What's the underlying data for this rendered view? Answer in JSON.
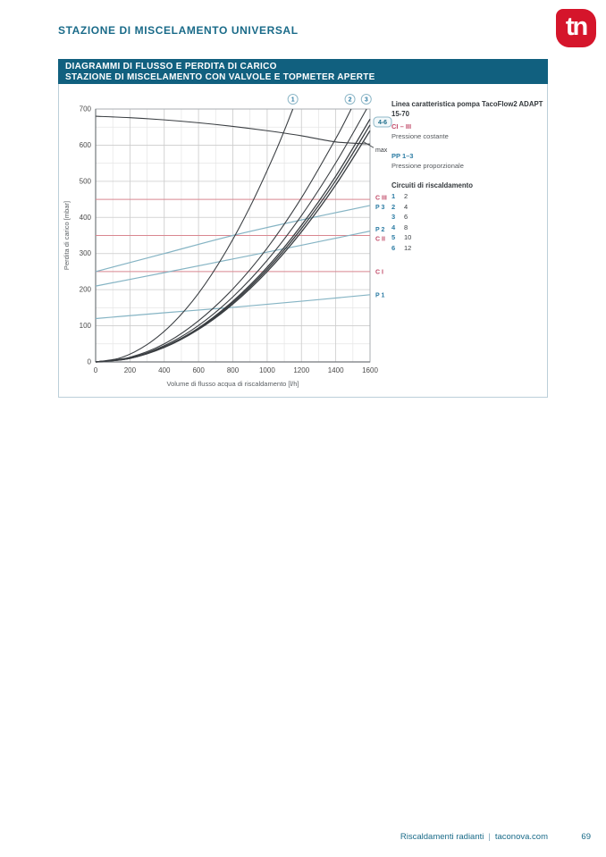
{
  "header": {
    "title": "STAZIONE DI MISCELAMENTO UNIVERSAL",
    "logo_text": "tn"
  },
  "banner": {
    "line1": "DIAGRAMMI DI FLUSSO E PERDITA DI CARICO",
    "line2": "STAZIONE DI MISCELAMENTO CON VALVOLE E TOPMETER APERTE"
  },
  "legend": {
    "pump_title_line1": "Linea caratteristica pompa TacoFlow2 ADAPT",
    "pump_title_line2": "15-70",
    "constant_code": "CI – III",
    "constant_label": "Pressione costante",
    "proportional_code": "PP 1–3",
    "proportional_label": "Pressione proporzionale",
    "circuits_title": "Circuiti di riscaldamento",
    "circuits": [
      {
        "n": "1",
        "v": "2"
      },
      {
        "n": "2",
        "v": "4"
      },
      {
        "n": "3",
        "v": "6"
      },
      {
        "n": "4",
        "v": "8"
      },
      {
        "n": "5",
        "v": "10"
      },
      {
        "n": "6",
        "v": "12"
      }
    ]
  },
  "footer": {
    "left": "Riscaldamenti radianti",
    "sep": "|",
    "right": "taconova.com",
    "page_number": "69"
  },
  "chart_data": {
    "type": "line",
    "title": "",
    "xlabel": "Volume di flusso acqua di riscaldamento [l/h]",
    "ylabel": "Perdita di carico [mbar]",
    "xlim": [
      0,
      1600
    ],
    "ylim": [
      0,
      700
    ],
    "x_major_ticks": [
      0,
      200,
      400,
      600,
      800,
      1000,
      1200,
      1400,
      1600
    ],
    "y_major_ticks": [
      0,
      100,
      200,
      300,
      400,
      500,
      600,
      700
    ],
    "x_minor_step": 100,
    "y_minor_step": 50,
    "grid": true,
    "legend_position": "right-outside",
    "series": [
      {
        "name": "constant-pressure-CIII",
        "label": "C III",
        "group": "constant",
        "w": 1,
        "points": [
          [
            0,
            450
          ],
          [
            1600,
            450
          ]
        ]
      },
      {
        "name": "constant-pressure-CII",
        "label": "C II",
        "group": "constant",
        "w": 1,
        "points": [
          [
            0,
            350
          ],
          [
            1600,
            350
          ]
        ]
      },
      {
        "name": "constant-pressure-CI",
        "label": "C I",
        "group": "constant",
        "w": 1,
        "points": [
          [
            0,
            250
          ],
          [
            1600,
            250
          ]
        ]
      },
      {
        "name": "proportional-pressure-P3",
        "label": "P 3",
        "group": "proportional",
        "w": 1.2,
        "points": [
          [
            0,
            250
          ],
          [
            400,
            300
          ],
          [
            800,
            350
          ],
          [
            1200,
            393
          ],
          [
            1600,
            433
          ]
        ]
      },
      {
        "name": "proportional-pressure-P2",
        "label": "P 2",
        "group": "proportional",
        "w": 1.2,
        "points": [
          [
            0,
            210
          ],
          [
            400,
            247
          ],
          [
            800,
            285
          ],
          [
            1200,
            323
          ],
          [
            1600,
            362
          ]
        ]
      },
      {
        "name": "proportional-pressure-P1",
        "label": "P 1",
        "group": "proportional",
        "w": 1.2,
        "points": [
          [
            0,
            120
          ],
          [
            400,
            136
          ],
          [
            800,
            151
          ],
          [
            1200,
            168
          ],
          [
            1600,
            186
          ]
        ]
      },
      {
        "name": "circuits-1",
        "label": "1",
        "group": "circuit",
        "w": 1.1,
        "points": [
          [
            0,
            0
          ],
          [
            150,
            12
          ],
          [
            300,
            48
          ],
          [
            450,
            107
          ],
          [
            600,
            190
          ],
          [
            750,
            298
          ],
          [
            900,
            429
          ],
          [
            1050,
            583
          ],
          [
            1150,
            700
          ]
        ]
      },
      {
        "name": "circuits-2",
        "label": "2",
        "group": "circuit",
        "w": 1.1,
        "points": [
          [
            0,
            0
          ],
          [
            200,
            13
          ],
          [
            400,
            50
          ],
          [
            600,
            114
          ],
          [
            800,
            202
          ],
          [
            1000,
            315
          ],
          [
            1200,
            454
          ],
          [
            1400,
            618
          ],
          [
            1490,
            700
          ]
        ]
      },
      {
        "name": "circuits-3",
        "label": "3",
        "group": "circuit",
        "w": 1.1,
        "points": [
          [
            0,
            0
          ],
          [
            200,
            11
          ],
          [
            400,
            45
          ],
          [
            600,
            101
          ],
          [
            800,
            180
          ],
          [
            1000,
            281
          ],
          [
            1200,
            405
          ],
          [
            1400,
            551
          ],
          [
            1580,
            700
          ]
        ]
      },
      {
        "name": "circuits-4",
        "label": "4",
        "group": "circuit",
        "w": 1.3,
        "points": [
          [
            0,
            0
          ],
          [
            200,
            10
          ],
          [
            400,
            42
          ],
          [
            600,
            94
          ],
          [
            800,
            168
          ],
          [
            1000,
            262
          ],
          [
            1200,
            378
          ],
          [
            1400,
            514
          ],
          [
            1600,
            672
          ]
        ]
      },
      {
        "name": "circuits-5",
        "label": "5",
        "group": "circuit",
        "w": 1.3,
        "points": [
          [
            0,
            0
          ],
          [
            200,
            10
          ],
          [
            400,
            41
          ],
          [
            600,
            92
          ],
          [
            800,
            164
          ],
          [
            1000,
            256
          ],
          [
            1200,
            369
          ],
          [
            1400,
            502
          ],
          [
            1600,
            656
          ]
        ]
      },
      {
        "name": "circuits-6",
        "label": "6",
        "group": "circuit",
        "w": 1.3,
        "points": [
          [
            0,
            0
          ],
          [
            200,
            10
          ],
          [
            400,
            40
          ],
          [
            600,
            90
          ],
          [
            800,
            160
          ],
          [
            1000,
            250
          ],
          [
            1200,
            360
          ],
          [
            1400,
            490
          ],
          [
            1600,
            640
          ]
        ]
      },
      {
        "name": "pump-max-speed",
        "label": "max",
        "group": "pump",
        "w": 1.1,
        "points": [
          [
            0,
            680
          ],
          [
            200,
            676
          ],
          [
            400,
            670
          ],
          [
            600,
            662
          ],
          [
            800,
            652
          ],
          [
            1000,
            640
          ],
          [
            1200,
            626
          ],
          [
            1400,
            609
          ],
          [
            1600,
            603
          ]
        ]
      }
    ],
    "top_markers": [
      {
        "label": "1",
        "x": 1150
      },
      {
        "label": "2",
        "x": 1483
      },
      {
        "label": "3",
        "x": 1578
      }
    ],
    "right_labels": [
      {
        "text": "4-6",
        "style": "boxed",
        "y": 664
      },
      {
        "text": "max",
        "style": "dark",
        "y": 588,
        "leader": true
      },
      {
        "text": "C III",
        "style": "red",
        "y": 455
      },
      {
        "text": "P 3",
        "style": "blue",
        "y": 429
      },
      {
        "text": "P 2",
        "style": "blue",
        "y": 367
      },
      {
        "text": "C II",
        "style": "red",
        "y": 341
      },
      {
        "text": "C I",
        "style": "red",
        "y": 250
      },
      {
        "text": "P 1",
        "style": "blue",
        "y": 185
      }
    ],
    "colors": {
      "dark": "#3A3E42",
      "red_line": "#D98790",
      "blue_line": "#85B4C4",
      "red_text": "#C14A68",
      "blue_text": "#2C7CA4",
      "teal": "#1A6B89",
      "marker_ring": "#8FB8C8",
      "grid_major": "#CDCDCD",
      "grid_minor": "#E5E5E5",
      "axis": "#A8AEB2",
      "axis_dark": "#73787C",
      "tick_text": "#4A4A4A"
    }
  }
}
